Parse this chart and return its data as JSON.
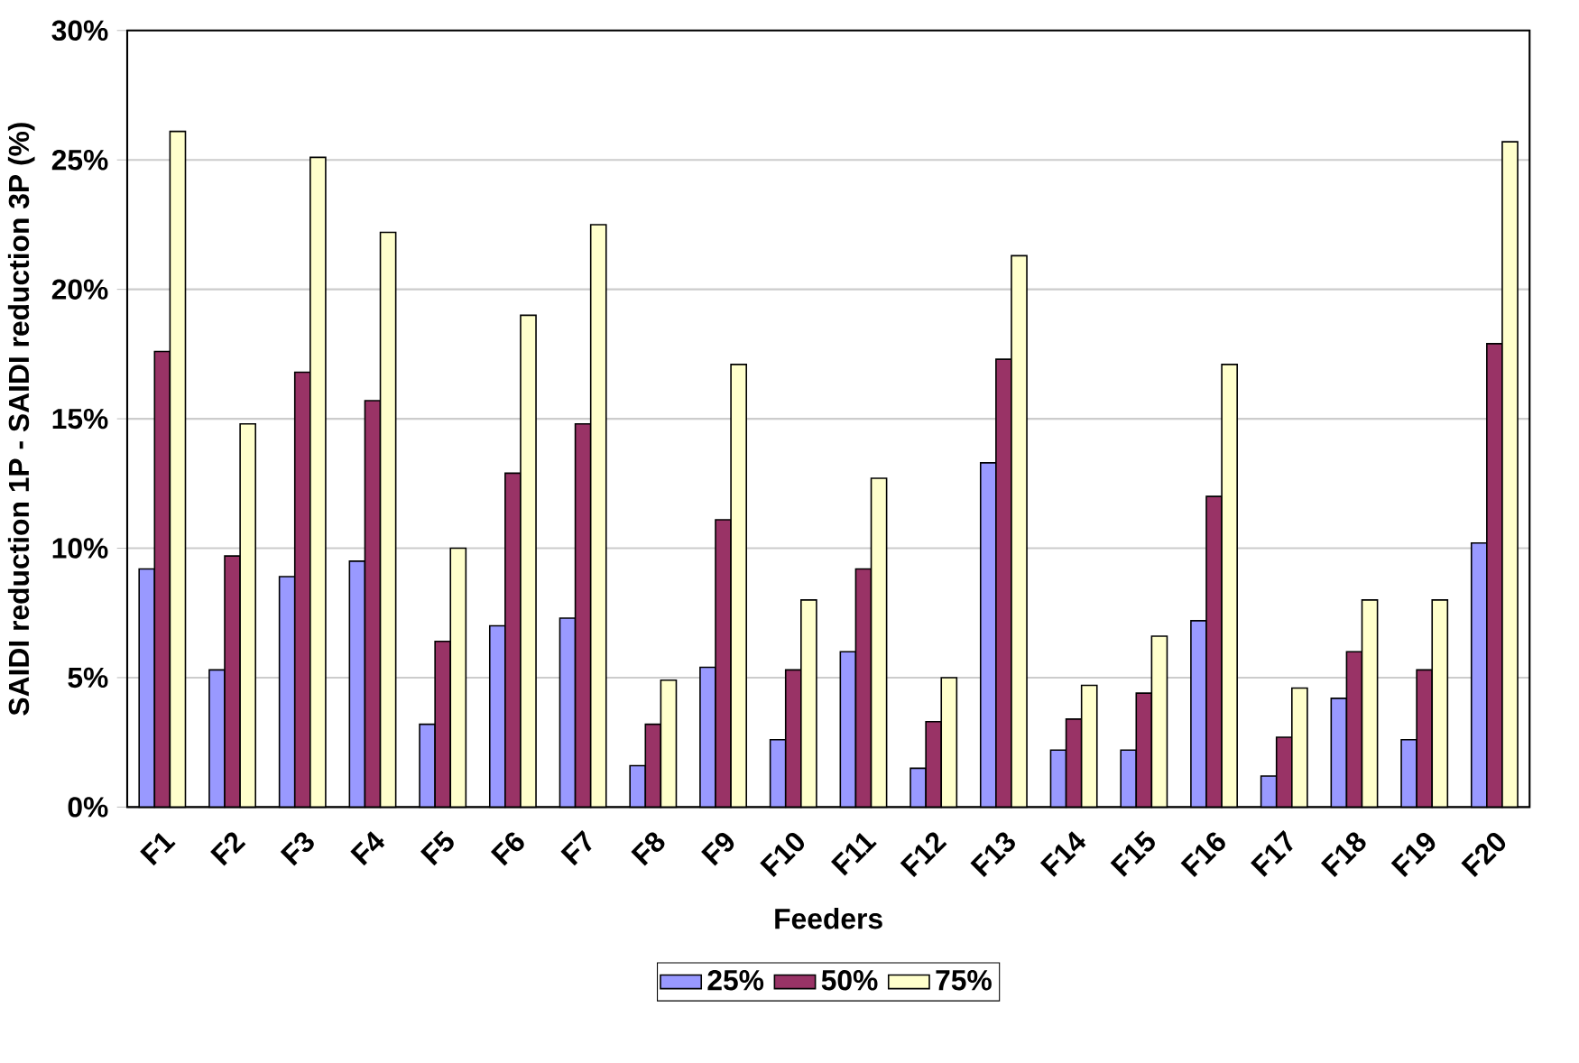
{
  "chart_data": {
    "type": "bar",
    "xlabel": "Feeders",
    "ylabel": "SAIDI reduction 1P - SAIDI reduction 3P (%)",
    "categories": [
      "F1",
      "F2",
      "F3",
      "F4",
      "F5",
      "F6",
      "F7",
      "F8",
      "F9",
      "F10",
      "F11",
      "F12",
      "F13",
      "F14",
      "F15",
      "F16",
      "F17",
      "F18",
      "F19",
      "F20"
    ],
    "series": [
      {
        "name": "25%",
        "color": "#9999ff",
        "values": [
          9.2,
          5.3,
          8.9,
          9.5,
          3.2,
          7.0,
          7.3,
          1.6,
          5.4,
          2.6,
          6.0,
          1.5,
          13.3,
          2.2,
          2.2,
          7.2,
          1.2,
          4.2,
          2.6,
          10.2
        ]
      },
      {
        "name": "50%",
        "color": "#993366",
        "values": [
          17.6,
          9.7,
          16.8,
          15.7,
          6.4,
          12.9,
          14.8,
          3.2,
          11.1,
          5.3,
          9.2,
          3.3,
          17.3,
          3.4,
          4.4,
          12.0,
          2.7,
          6.0,
          5.3,
          17.9
        ]
      },
      {
        "name": "75%",
        "color": "#ffffcc",
        "values": [
          26.1,
          14.8,
          25.1,
          22.2,
          10.0,
          19.0,
          22.5,
          4.9,
          17.1,
          8.0,
          12.7,
          5.0,
          21.3,
          4.7,
          6.6,
          17.1,
          4.6,
          8.0,
          8.0,
          25.7
        ]
      }
    ],
    "ylim": [
      0,
      30
    ],
    "yticks": [
      {
        "value": 0,
        "label": "0%"
      },
      {
        "value": 5,
        "label": "5%"
      },
      {
        "value": 10,
        "label": "10%"
      },
      {
        "value": 15,
        "label": "15%"
      },
      {
        "value": 20,
        "label": "20%"
      },
      {
        "value": 25,
        "label": "25%"
      },
      {
        "value": 30,
        "label": "30%"
      }
    ],
    "grid": "y",
    "legend": "bottom"
  }
}
